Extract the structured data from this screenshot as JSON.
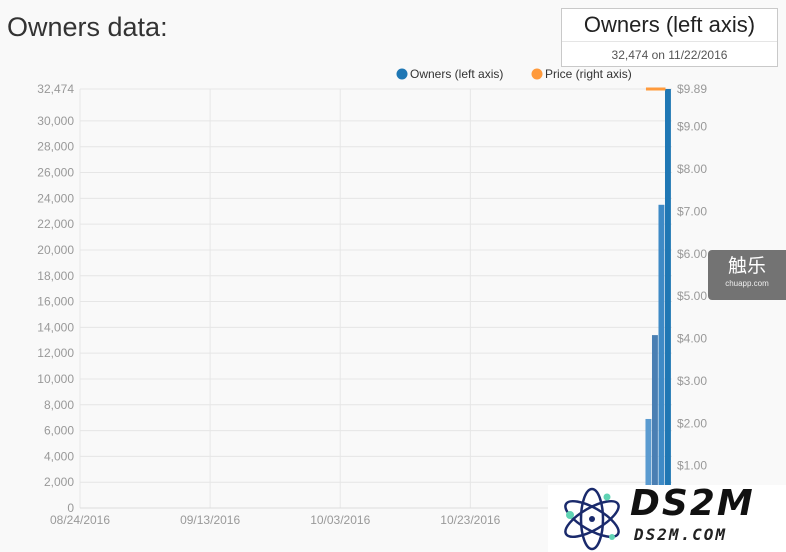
{
  "page": {
    "title": "Owners data:"
  },
  "tooltip": {
    "title": "Owners (left axis)",
    "value": "32,474 on 11/22/2016"
  },
  "watermarks": {
    "chuapp_cn": "触乐",
    "chuapp_url": "chuapp.com",
    "ds2m_big": "DS2M",
    "ds2m_small": "DS2M.COM"
  },
  "colors": {
    "owners": "#1f77b4",
    "price": "#ff9a3c",
    "grid": "#e6e6e6",
    "tick": "#999999"
  },
  "chart_data": {
    "type": "bar",
    "legend": [
      {
        "name": "Owners (left axis)",
        "color": "#1f77b4"
      },
      {
        "name": "Price (right axis)",
        "color": "#ff9a3c"
      }
    ],
    "legend_position": "top-right",
    "x_ticks": [
      "08/24/2016",
      "09/13/2016",
      "10/03/2016",
      "10/23/2016"
    ],
    "x_range": [
      "2016-08-24",
      "2016-11-23"
    ],
    "y_left_ticks": [
      "0",
      "2,000",
      "4,000",
      "6,000",
      "8,000",
      "10,000",
      "12,000",
      "14,000",
      "16,000",
      "18,000",
      "20,000",
      "22,000",
      "24,000",
      "26,000",
      "28,000",
      "30,000",
      "32,474"
    ],
    "y_left_range": [
      0,
      32474
    ],
    "y_right_ticks": [
      "$1.00",
      "$2.00",
      "$3.00",
      "$4.00",
      "$5.00",
      "$6.00",
      "$7.00",
      "$8.00",
      "$9.00",
      "$9.89"
    ],
    "y_right_range": [
      0,
      9.89
    ],
    "grid": true,
    "series": [
      {
        "name": "Owners (left axis)",
        "axis": "left",
        "points": [
          {
            "date": "2016-11-19",
            "value": 6900
          },
          {
            "date": "2016-11-20",
            "value": 13400
          },
          {
            "date": "2016-11-21",
            "value": 23500
          },
          {
            "date": "2016-11-22",
            "value": 32474
          }
        ]
      },
      {
        "name": "Price (right axis)",
        "axis": "right",
        "points": [
          {
            "date": "2016-11-19",
            "value": 9.99
          },
          {
            "date": "2016-11-22",
            "value": 9.99
          }
        ]
      }
    ]
  }
}
